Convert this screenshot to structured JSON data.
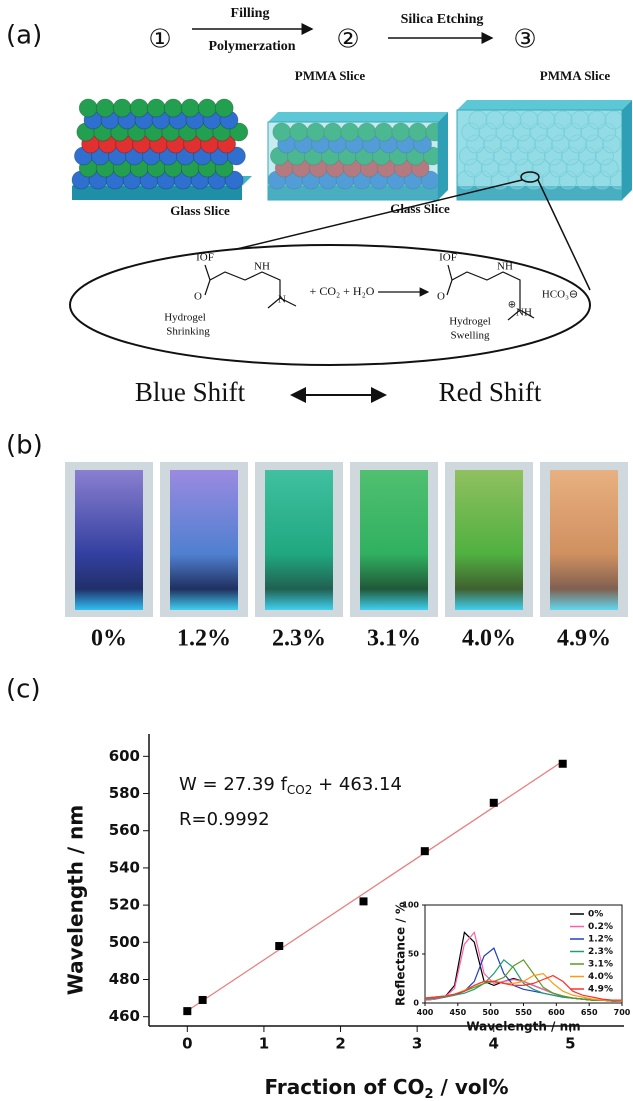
{
  "panel_a": {
    "label": "(a)",
    "step_1": "①",
    "step_2": "②",
    "step_3": "③",
    "arrow_1_top": "Filling",
    "arrow_1_bottom": "Polymerzation",
    "arrow_2_top": "Silica Etching",
    "block_1_bottom": "Glass Slice",
    "block_2_top": "PMMA Slice",
    "block_2_bottom": "Glass Slice",
    "block_3_top": "PMMA Slice",
    "reactant": {
      "group": "IOF",
      "amide_n": "NH",
      "carbonyl": "O",
      "amine": "N",
      "name_1": "Hydrogel",
      "name_2": "Shrinking"
    },
    "reagents": "+ CO₂ + H₂O",
    "product": {
      "group": "IOF",
      "amide_n": "NH",
      "carbonyl": "O",
      "counter_ion": "HCO₃⊖",
      "amine": "NH",
      "charge": "⊕",
      "name_1": "Hydrogel",
      "name_2": "Swelling"
    },
    "left_shift": "Blue Shift",
    "right_shift": "Red Shift"
  },
  "panel_b": {
    "label": "(b)",
    "samples": [
      "0%",
      "1.2%",
      "2.3%",
      "3.1%",
      "4.0%",
      "4.9%"
    ]
  },
  "panel_c": {
    "label": "(c)"
  },
  "chart_data": [
    {
      "type": "scatter",
      "x": [
        0,
        0.2,
        1.2,
        2.3,
        3.1,
        4.0,
        4.9
      ],
      "values": [
        463,
        469,
        498,
        522,
        549,
        575,
        596
      ],
      "color": "#000000",
      "xlim": [
        -0.5,
        5.7
      ],
      "xticks": [
        0,
        1,
        2,
        3,
        4,
        5
      ],
      "ylim": [
        455,
        612
      ],
      "yticks": [
        460,
        480,
        500,
        520,
        540,
        560,
        580,
        600
      ],
      "xlabel": {
        "text": "Fraction of CO",
        "sub": "2",
        "rest": " / vol%"
      },
      "ylabel": "Wavelength / nm",
      "equation": {
        "text": "W = 27.39 f",
        "sub": "CO2",
        "rest": " + 463.14"
      },
      "r_value": "R=0.9992",
      "fit": {
        "slope": 27.39,
        "intercept": 463.14,
        "color": "#e88080"
      }
    },
    {
      "type": "line",
      "x": [
        400,
        415,
        430,
        445,
        460,
        475,
        490,
        505,
        520,
        535,
        550,
        565,
        580,
        595,
        610,
        625,
        640,
        655,
        670,
        685,
        700
      ],
      "series": [
        {
          "name": "0%",
          "color": "#000000",
          "values": [
            3,
            4,
            6,
            18,
            72,
            62,
            22,
            18,
            22,
            25,
            22,
            18,
            14,
            10,
            7,
            5,
            4,
            3,
            3,
            2,
            2
          ]
        },
        {
          "name": "0.2%",
          "color": "#ff5fa8",
          "values": [
            3,
            4,
            6,
            15,
            60,
            72,
            30,
            20,
            22,
            24,
            22,
            18,
            14,
            10,
            7,
            5,
            4,
            3,
            3,
            2,
            2
          ]
        },
        {
          "name": "1.2%",
          "color": "#2040c0",
          "values": [
            4,
            5,
            6,
            8,
            12,
            22,
            48,
            56,
            30,
            18,
            14,
            12,
            10,
            8,
            6,
            5,
            4,
            3,
            3,
            2,
            2
          ]
        },
        {
          "name": "2.3%",
          "color": "#20a070",
          "values": [
            4,
            5,
            6,
            8,
            10,
            14,
            20,
            30,
            44,
            36,
            20,
            14,
            10,
            8,
            6,
            5,
            4,
            3,
            3,
            2,
            2
          ]
        },
        {
          "name": "3.1%",
          "color": "#5a9a20",
          "values": [
            5,
            6,
            7,
            9,
            12,
            16,
            20,
            22,
            26,
            38,
            44,
            30,
            16,
            10,
            7,
            5,
            4,
            3,
            3,
            2,
            2
          ]
        },
        {
          "name": "4.0%",
          "color": "#ff9a10",
          "values": [
            5,
            6,
            7,
            9,
            13,
            18,
            22,
            22,
            20,
            20,
            22,
            28,
            30,
            20,
            12,
            8,
            6,
            4,
            3,
            3,
            2
          ]
        },
        {
          "name": "4.9%",
          "color": "#ff3030",
          "values": [
            5,
            6,
            7,
            9,
            12,
            18,
            22,
            22,
            20,
            18,
            18,
            20,
            24,
            28,
            22,
            12,
            8,
            6,
            4,
            3,
            3
          ]
        }
      ],
      "xlim": [
        400,
        700
      ],
      "xticks": [
        400,
        450,
        500,
        550,
        600,
        650,
        700
      ],
      "ylim": [
        0,
        100
      ],
      "yticks": [
        0,
        50,
        100
      ],
      "xlabel": "Wavelength / nm",
      "ylabel": "Reflectance / %"
    }
  ]
}
